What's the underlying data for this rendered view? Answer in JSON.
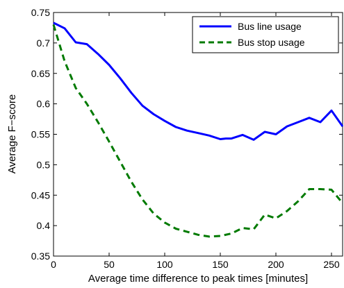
{
  "chart_data": {
    "type": "line",
    "title": "",
    "xlabel": "Average time difference to peak times [minutes]",
    "ylabel": "Average F−score",
    "xlim": [
      0,
      260
    ],
    "ylim": [
      0.35,
      0.75
    ],
    "x_ticks": [
      0,
      50,
      100,
      150,
      200,
      250
    ],
    "x_tick_labels": [
      "0",
      "50",
      "100",
      "150",
      "200",
      "250"
    ],
    "y_ticks": [
      0.35,
      0.4,
      0.45,
      0.5,
      0.55,
      0.6,
      0.65,
      0.7,
      0.75
    ],
    "y_tick_labels": [
      "0.35",
      "0.4",
      "0.45",
      "0.5",
      "0.55",
      "0.6",
      "0.65",
      "0.7",
      "0.75"
    ],
    "grid": false,
    "legend_position": "top-right",
    "series": [
      {
        "name": "Bus line usage",
        "color": "#0000ff",
        "style": "solid",
        "x": [
          0,
          10,
          20,
          30,
          40,
          50,
          60,
          70,
          80,
          90,
          100,
          110,
          120,
          130,
          140,
          150,
          155,
          160,
          170,
          180,
          190,
          200,
          210,
          220,
          230,
          240,
          250,
          260
        ],
        "y": [
          0.733,
          0.724,
          0.701,
          0.698,
          0.682,
          0.664,
          0.642,
          0.618,
          0.597,
          0.583,
          0.572,
          0.562,
          0.556,
          0.552,
          0.548,
          0.542,
          0.543,
          0.543,
          0.549,
          0.541,
          0.554,
          0.55,
          0.563,
          0.57,
          0.577,
          0.57,
          0.589,
          0.563
        ]
      },
      {
        "name": "Bus stop usage",
        "color": "#007a00",
        "style": "dashed",
        "x": [
          0,
          10,
          20,
          30,
          40,
          50,
          60,
          70,
          80,
          90,
          100,
          110,
          120,
          130,
          140,
          150,
          160,
          170,
          180,
          190,
          200,
          210,
          220,
          230,
          240,
          250,
          260
        ],
        "y": [
          0.73,
          0.67,
          0.626,
          0.6,
          0.57,
          0.538,
          0.505,
          0.472,
          0.443,
          0.42,
          0.405,
          0.395,
          0.39,
          0.385,
          0.382,
          0.383,
          0.387,
          0.396,
          0.394,
          0.418,
          0.412,
          0.424,
          0.44,
          0.46,
          0.46,
          0.459,
          0.437
        ]
      }
    ]
  }
}
